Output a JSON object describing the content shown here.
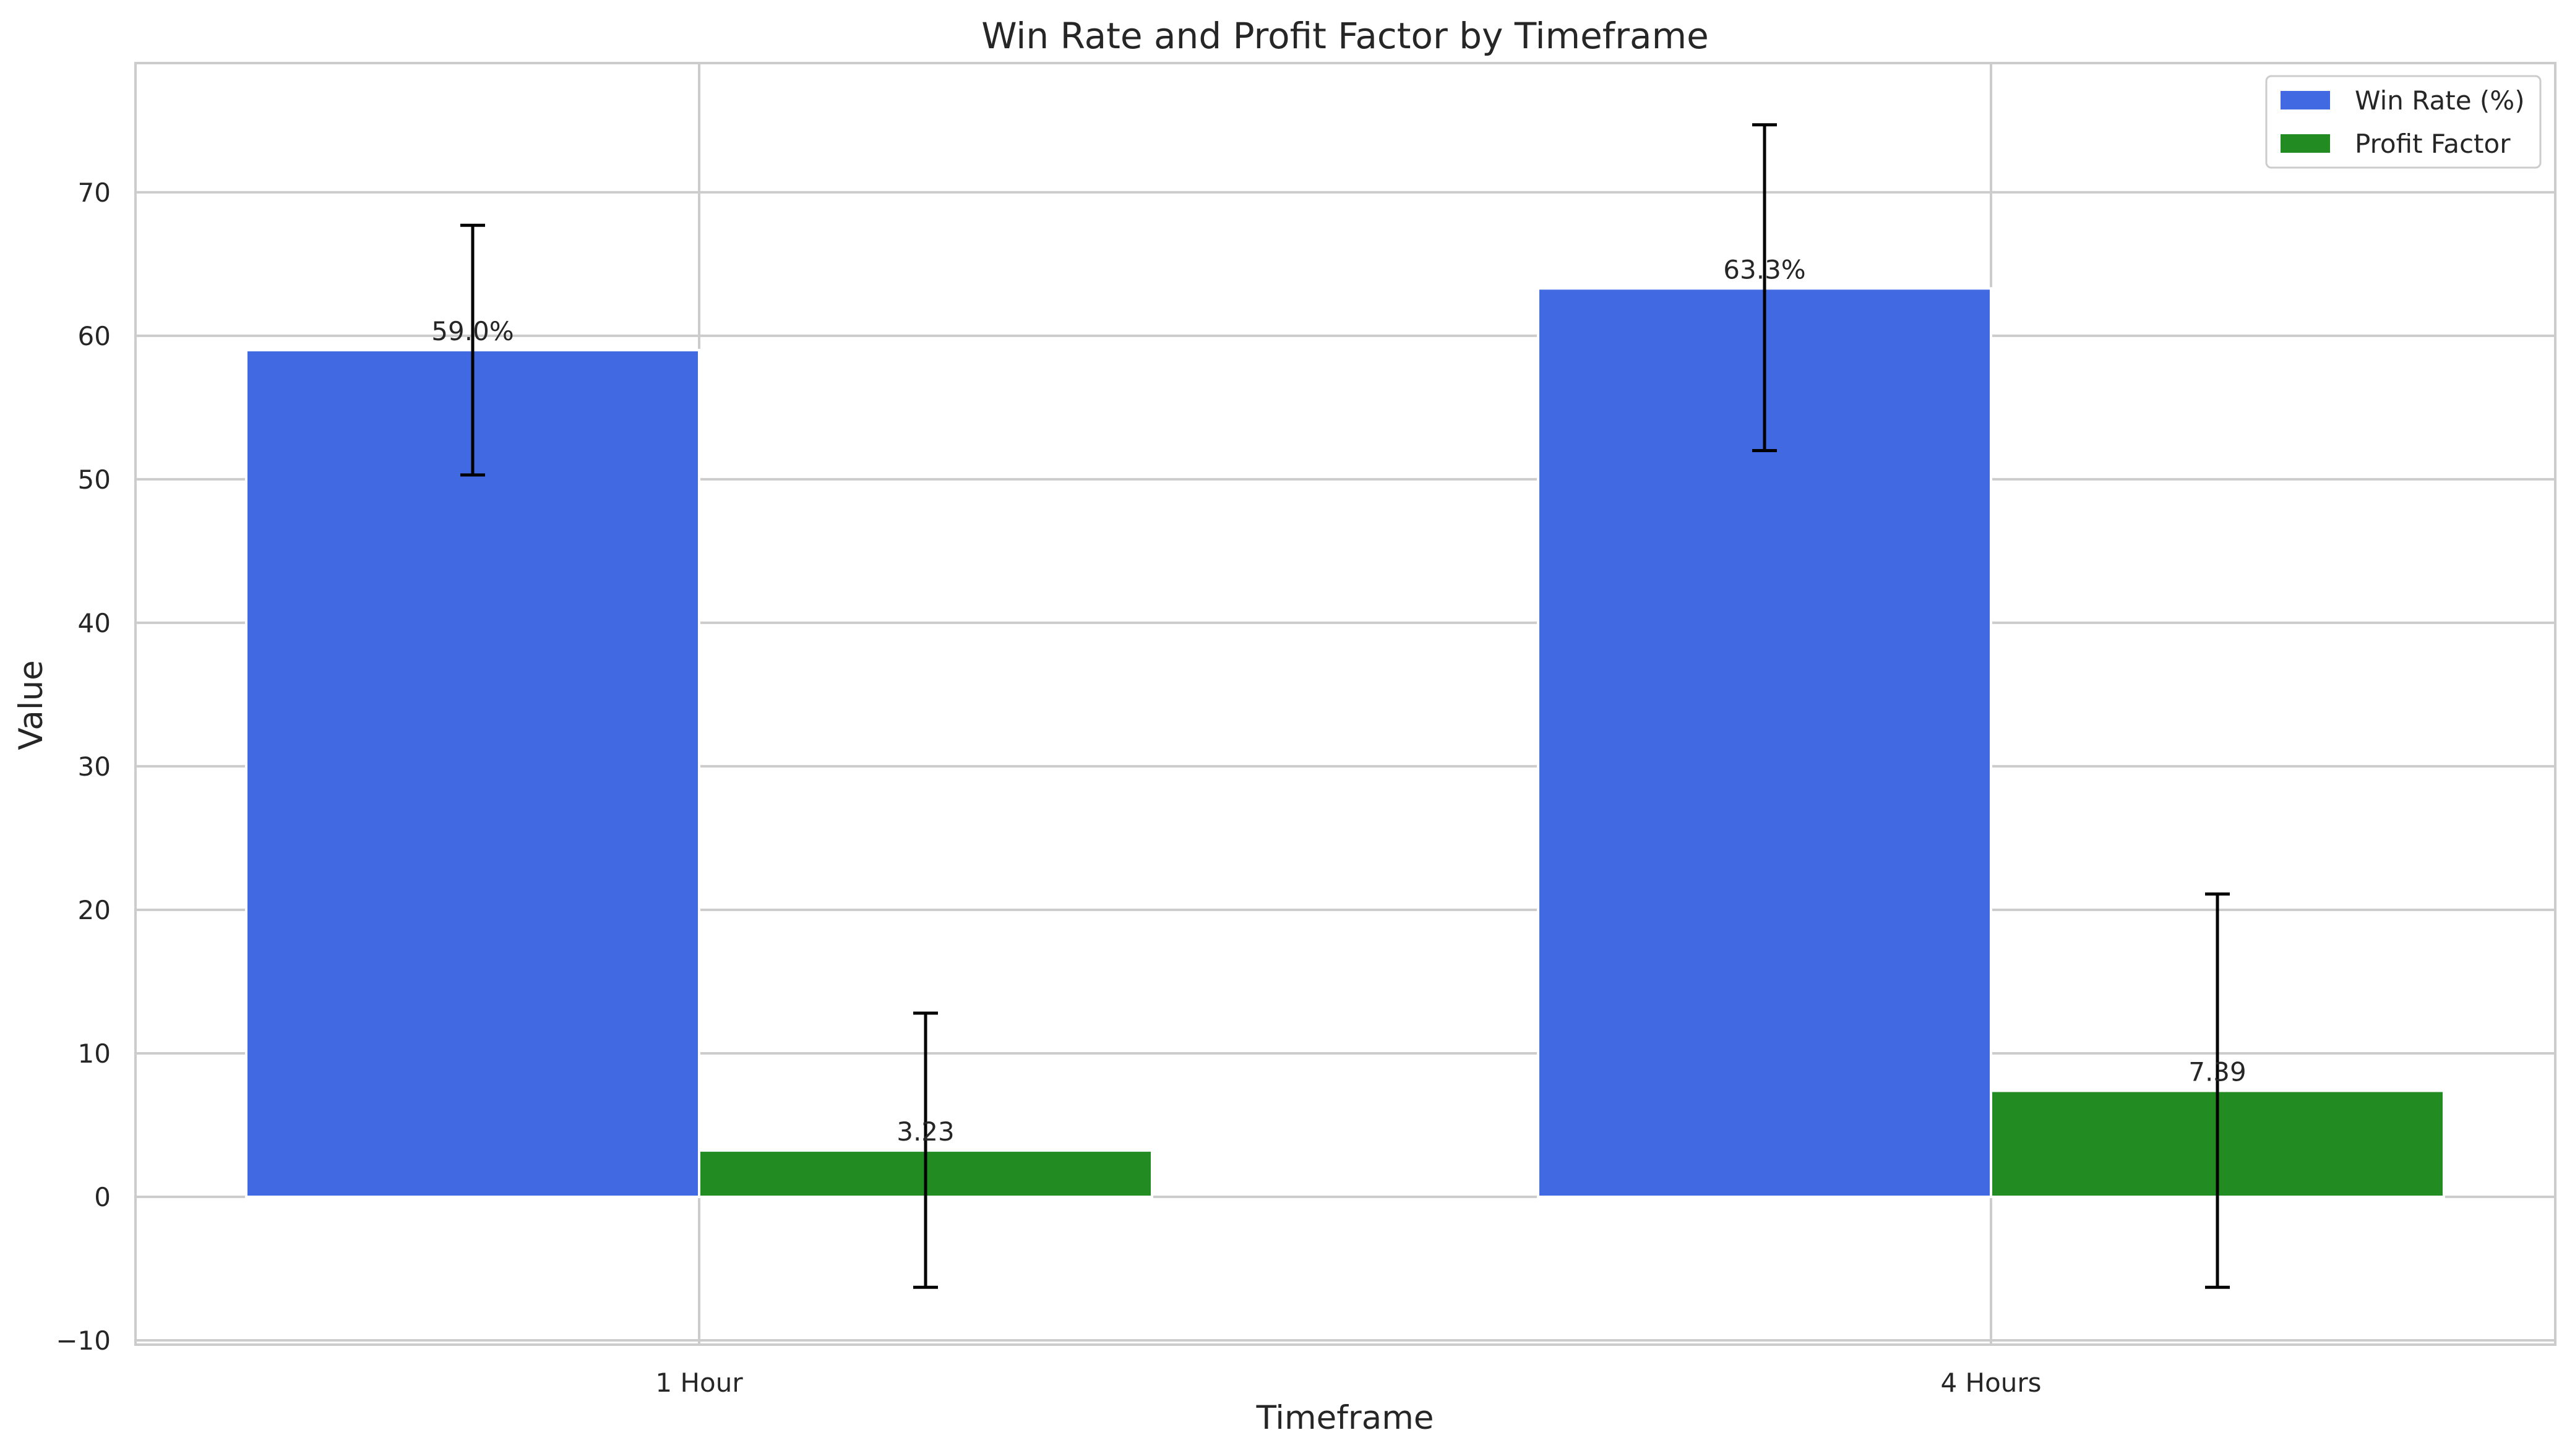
{
  "chart_data": {
    "type": "bar",
    "title": "Win Rate and Profit Factor by Timeframe",
    "xlabel": "Timeframe",
    "ylabel": "Value",
    "categories": [
      "1 Hour",
      "4 Hours"
    ],
    "ylim": [
      -10.3,
      79
    ],
    "yticks": [
      -10,
      0,
      10,
      20,
      30,
      40,
      50,
      60,
      70
    ],
    "grid": true,
    "legend_position": "top-right",
    "series": [
      {
        "name": "Win Rate (%)",
        "color": "#4169e1",
        "values": [
          59.0,
          63.3
        ],
        "error_low": [
          50.3,
          52.0
        ],
        "error_high": [
          67.7,
          74.7
        ],
        "labels": [
          "59.0%",
          "63.3%"
        ]
      },
      {
        "name": "Profit Factor",
        "color": "#228b22",
        "values": [
          3.23,
          7.39
        ],
        "error_low": [
          -6.3,
          -6.3
        ],
        "error_high": [
          12.8,
          21.1
        ],
        "labels": [
          "3.23",
          "7.39"
        ]
      }
    ]
  }
}
